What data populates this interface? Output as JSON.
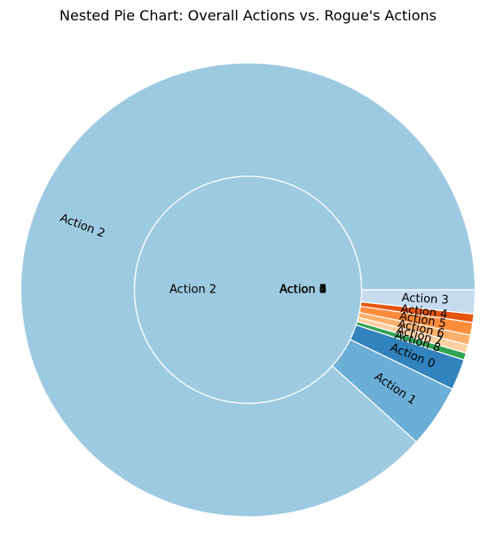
{
  "chart_data": {
    "type": "pie",
    "variant": "nested",
    "title": "Nested Pie Chart: Overall Actions vs. Rogue's Actions",
    "rings": [
      {
        "name": "outer",
        "slices": [
          {
            "label": "Action 2",
            "value": 88.3,
            "color": "#9ecae1"
          },
          {
            "label": "Action 1",
            "value": 4.5,
            "color": "#6baed6"
          },
          {
            "label": "Action 0",
            "value": 2.2,
            "color": "#3182bd"
          },
          {
            "label": "Action 8",
            "value": 0.5,
            "color": "#31a354"
          },
          {
            "label": "Action 7",
            "value": 0.6,
            "color": "#fdd0a2"
          },
          {
            "label": "Action 6",
            "value": 0.7,
            "color": "#fdae6b"
          },
          {
            "label": "Action 5",
            "value": 0.9,
            "color": "#fd8d3c"
          },
          {
            "label": "Action 4",
            "value": 0.6,
            "color": "#e6550d"
          },
          {
            "label": "Action 3",
            "value": 1.7,
            "color": "#c6dbef"
          }
        ]
      },
      {
        "name": "inner",
        "slices": [
          {
            "label": "Action 2",
            "value": 100.0,
            "color": "#9ecae1"
          },
          {
            "label": "Action 1",
            "value": 0.0,
            "color": "#6baed6"
          },
          {
            "label": "Action 0",
            "value": 0.0,
            "color": "#3182bd"
          },
          {
            "label": "Action 8",
            "value": 0.0,
            "color": "#31a354"
          },
          {
            "label": "Action 7",
            "value": 0.0,
            "color": "#fdd0a2"
          },
          {
            "label": "Action 6",
            "value": 0.0,
            "color": "#fdae6b"
          },
          {
            "label": "Action 5",
            "value": 0.0,
            "color": "#fd8d3c"
          },
          {
            "label": "Action 4",
            "value": 0.0,
            "color": "#e6550d"
          },
          {
            "label": "Action 3",
            "value": 0.0,
            "color": "#c6dbef"
          }
        ]
      }
    ],
    "start_angle_deg": 0,
    "direction": "counterclockwise",
    "labels_rotated": true,
    "legend": "none"
  }
}
